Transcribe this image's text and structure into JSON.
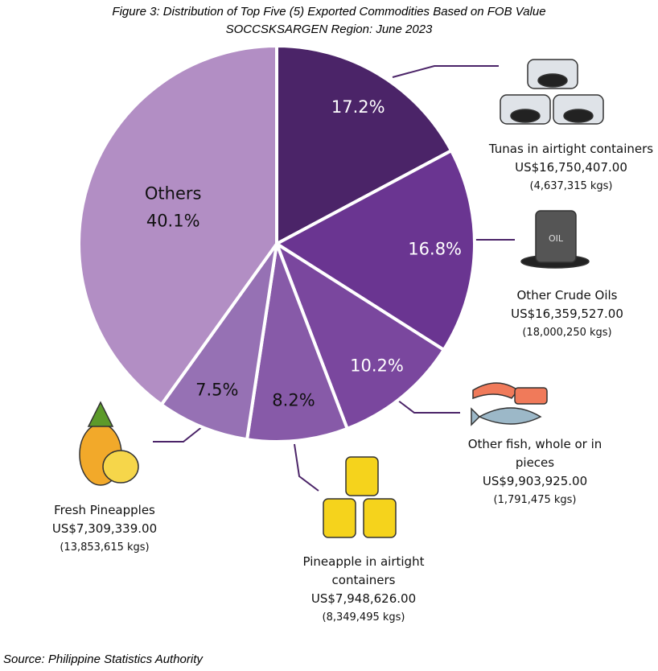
{
  "chart_data": {
    "type": "pie",
    "title": "Figure 3: Distribution of Top Five (5) Exported Commodities Based on FOB Value",
    "subtitle": "SOCCSKSARGEN Region: June 2023",
    "categories": [
      "Tunas in airtight containers",
      "Other Crude Oils",
      "Other fish, whole or in pieces",
      "Pineapple in airtight containers",
      "Fresh Pineapples",
      "Others"
    ],
    "values": [
      17.2,
      16.8,
      10.2,
      8.2,
      7.5,
      40.1
    ],
    "value_labels": [
      "17.2%",
      "16.8%",
      "10.2%",
      "8.2%",
      "7.5%",
      "40.1%"
    ],
    "colors": [
      "#4b2468",
      "#6a3591",
      "#7a479e",
      "#875aa8",
      "#9671b4",
      "#b28ec4"
    ],
    "fob_value_labels": [
      "US$16,750,407.00",
      "US$16,359,527.00",
      "US$9,903,925.00",
      "US$7,948,626.00",
      "US$7,309,339.00",
      null
    ],
    "volume_labels": [
      "(4,637,315 kgs)",
      "(18,000,250 kgs)",
      "(1,791,475 kgs)",
      "(8,349,495 kgs)",
      "(13,853,615 kgs)",
      null
    ],
    "source": "Source: Philippine Statistics Authority"
  }
}
